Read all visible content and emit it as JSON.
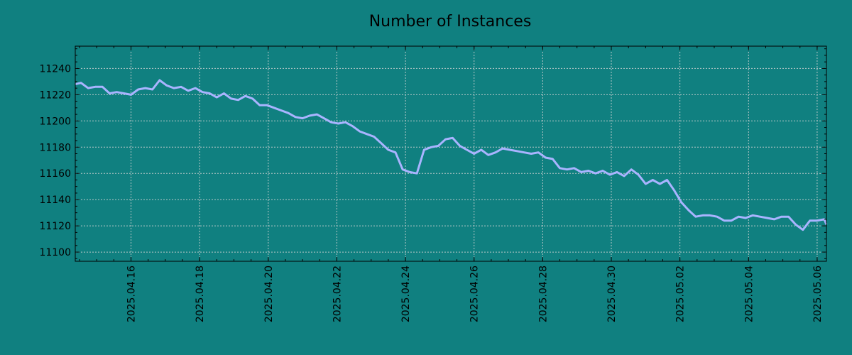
{
  "chart_data": {
    "type": "line",
    "title": "Number of Instances",
    "xlabel": "",
    "ylabel": "",
    "xlim": [
      "2025-04-14T09:00",
      "2025-05-06T06:30"
    ],
    "ylim": [
      11093,
      11257
    ],
    "y_ticks": [
      11100,
      11120,
      11140,
      11160,
      11180,
      11200,
      11220,
      11240
    ],
    "x_ticks": [
      "2025.04.16",
      "2025.04.18",
      "2025.04.20",
      "2025.04.22",
      "2025.04.24",
      "2025.04.26",
      "2025.04.28",
      "2025.04.30",
      "2025.05.02",
      "2025.05.04",
      "2025.05.06"
    ],
    "grid": true,
    "colors": {
      "background": "#108080",
      "line": "#a9b4ff",
      "grid": "#b8c8c8",
      "axis": "#000000"
    },
    "series": [
      {
        "name": "",
        "x": [
          "2025-04-14T09:00",
          "2025-04-14T13:00",
          "2025-04-14T18:00",
          "2025-04-14T23:00",
          "2025-04-15T04:00",
          "2025-04-15T09:00",
          "2025-04-15T14:00",
          "2025-04-15T19:00",
          "2025-04-16T00:00",
          "2025-04-16T05:00",
          "2025-04-16T10:00",
          "2025-04-16T15:00",
          "2025-04-16T20:00",
          "2025-04-17T01:00",
          "2025-04-17T06:00",
          "2025-04-17T11:00",
          "2025-04-17T16:00",
          "2025-04-17T21:00",
          "2025-04-18T02:00",
          "2025-04-18T07:00",
          "2025-04-18T12:00",
          "2025-04-18T17:00",
          "2025-04-18T22:00",
          "2025-04-19T03:00",
          "2025-04-19T08:00",
          "2025-04-19T13:00",
          "2025-04-19T18:00",
          "2025-04-19T23:00",
          "2025-04-20T04:00",
          "2025-04-20T09:00",
          "2025-04-20T14:00",
          "2025-04-20T19:00",
          "2025-04-21T00:00",
          "2025-04-21T05:00",
          "2025-04-21T10:00",
          "2025-04-21T15:00",
          "2025-04-21T20:00",
          "2025-04-22T01:00",
          "2025-04-22T06:00",
          "2025-04-22T11:00",
          "2025-04-22T16:00",
          "2025-04-22T21:00",
          "2025-04-23T02:00",
          "2025-04-23T07:00",
          "2025-04-23T12:00",
          "2025-04-23T17:00",
          "2025-04-23T22:00",
          "2025-04-24T03:00",
          "2025-04-24T08:00",
          "2025-04-24T13:00",
          "2025-04-24T18:00",
          "2025-04-24T23:00",
          "2025-04-25T04:00",
          "2025-04-25T09:00",
          "2025-04-25T14:00",
          "2025-04-25T19:00",
          "2025-04-26T00:00",
          "2025-04-26T05:00",
          "2025-04-26T10:00",
          "2025-04-26T15:00",
          "2025-04-26T20:00",
          "2025-04-27T01:00",
          "2025-04-27T06:00",
          "2025-04-27T11:00",
          "2025-04-27T16:00",
          "2025-04-27T21:00",
          "2025-04-28T02:00",
          "2025-04-28T07:00",
          "2025-04-28T12:00",
          "2025-04-28T17:00",
          "2025-04-28T22:00",
          "2025-04-29T03:00",
          "2025-04-29T08:00",
          "2025-04-29T13:00",
          "2025-04-29T18:00",
          "2025-04-29T23:00",
          "2025-04-30T04:00",
          "2025-04-30T09:00",
          "2025-04-30T14:00",
          "2025-04-30T19:00",
          "2025-05-01T00:00",
          "2025-05-01T05:00",
          "2025-05-01T10:00",
          "2025-05-01T15:00",
          "2025-05-01T20:00",
          "2025-05-02T01:00",
          "2025-05-02T06:00",
          "2025-05-02T11:00",
          "2025-05-02T16:00",
          "2025-05-02T21:00",
          "2025-05-03T02:00",
          "2025-05-03T07:00",
          "2025-05-03T12:00",
          "2025-05-03T17:00",
          "2025-05-03T22:00",
          "2025-05-04T03:00",
          "2025-05-04T08:00",
          "2025-05-04T13:00",
          "2025-05-04T18:00",
          "2025-05-04T23:00",
          "2025-05-05T04:00",
          "2025-05-05T09:00",
          "2025-05-05T14:00",
          "2025-05-05T19:00",
          "2025-05-06T00:00",
          "2025-05-06T05:00",
          "2025-05-06T06:30"
        ],
        "y": [
          11228,
          11229,
          11225,
          11226,
          11226,
          11221,
          11222,
          11221,
          11220,
          11224,
          11225,
          11224,
          11231,
          11227,
          11225,
          11226,
          11223,
          11225,
          11222,
          11221,
          11218,
          11221,
          11217,
          11216,
          11219,
          11217,
          11212,
          11212,
          11210,
          11208,
          11206,
          11203,
          11202,
          11204,
          11205,
          11202,
          11199,
          11198,
          11199,
          11196,
          11192,
          11190,
          11188,
          11183,
          11178,
          11176,
          11163,
          11161,
          11160,
          11178,
          11180,
          11181,
          11186,
          11187,
          11181,
          11178,
          11175,
          11178,
          11174,
          11176,
          11179,
          11178,
          11177,
          11176,
          11175,
          11176,
          11172,
          11171,
          11164,
          11163,
          11164,
          11161,
          11162,
          11160,
          11162,
          11159,
          11161,
          11158,
          11163,
          11159,
          11152,
          11155,
          11152,
          11155,
          11147,
          11138,
          11132,
          11127,
          11128,
          11128,
          11127,
          11124,
          11124,
          11127,
          11126,
          11128,
          11127,
          11126,
          11125,
          11127,
          11127,
          11121,
          11117,
          11124,
          11124,
          11125,
          11121
        ]
      }
    ]
  }
}
